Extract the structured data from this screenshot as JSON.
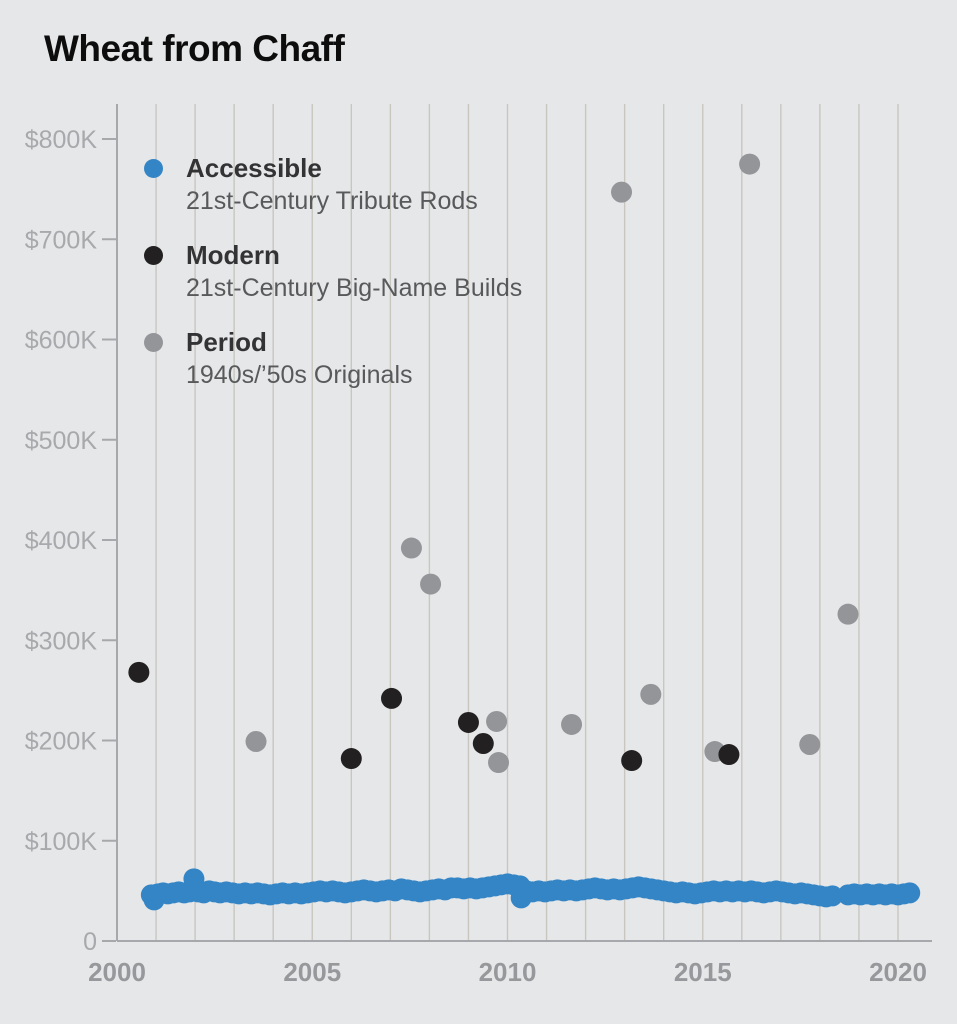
{
  "title": "Wheat from Chaff",
  "colors": {
    "background": "#e6e7e8",
    "accessible": "#3485c6",
    "modern": "#232021",
    "period": "#939598",
    "grid": "#c8c6bf",
    "axis": "#a6a8ab",
    "y_tick_label": "#a7a9ac",
    "x_tick_label": "#96989b",
    "title_text": "#0d0d0d",
    "legend_name_text": "#333335",
    "legend_desc_text": "#58595b"
  },
  "legend": [
    {
      "name": "Accessible",
      "description": "21st-Century Tribute Rods",
      "color_key": "accessible"
    },
    {
      "name": "Modern",
      "description": "21st-Century Big-Name Builds",
      "color_key": "modern"
    },
    {
      "name": "Period",
      "description": "1940s/’50s Originals",
      "color_key": "period"
    }
  ],
  "chart_data": {
    "type": "scatter",
    "title": "Wheat from Chaff",
    "y_unit": "USD (thousands)",
    "x_axis": {
      "range": [
        2000,
        2020.6
      ],
      "gridlines_every_year": true,
      "ticks": [
        {
          "value": 2000,
          "label": "2000"
        },
        {
          "value": 2005,
          "label": "2005"
        },
        {
          "value": 2010,
          "label": "2010"
        },
        {
          "value": 2015,
          "label": "2015"
        },
        {
          "value": 2020,
          "label": "2020"
        }
      ]
    },
    "y_axis": {
      "range": [
        0,
        835
      ],
      "ticks": [
        {
          "value": 0,
          "label": "0"
        },
        {
          "value": 100,
          "label": "$100K"
        },
        {
          "value": 200,
          "label": "$200K"
        },
        {
          "value": 300,
          "label": "$300K"
        },
        {
          "value": 400,
          "label": "$400K"
        },
        {
          "value": 500,
          "label": "$500K"
        },
        {
          "value": 600,
          "label": "$600K"
        },
        {
          "value": 700,
          "label": "$700K"
        },
        {
          "value": 800,
          "label": "$800K"
        }
      ]
    },
    "legend_position": "top-left-inside",
    "series": [
      {
        "name": "Accessible",
        "label": "21st-Century Tribute Rods",
        "color": "#3485c6",
        "points": [
          [
            2000.88,
            46
          ],
          [
            2000.95,
            41
          ],
          [
            2001.05,
            47
          ],
          [
            2001.18,
            48
          ],
          [
            2001.3,
            47
          ],
          [
            2001.44,
            48
          ],
          [
            2001.58,
            49
          ],
          [
            2001.72,
            48
          ],
          [
            2001.86,
            49
          ],
          [
            2001.97,
            62
          ],
          [
            2002.08,
            49
          ],
          [
            2002.22,
            48
          ],
          [
            2002.36,
            50
          ],
          [
            2002.5,
            49
          ],
          [
            2002.64,
            48
          ],
          [
            2002.8,
            49
          ],
          [
            2002.96,
            48
          ],
          [
            2003.12,
            47
          ],
          [
            2003.28,
            48
          ],
          [
            2003.44,
            47
          ],
          [
            2003.6,
            48
          ],
          [
            2003.76,
            47
          ],
          [
            2003.92,
            46
          ],
          [
            2004.08,
            47
          ],
          [
            2004.24,
            48
          ],
          [
            2004.4,
            47
          ],
          [
            2004.56,
            48
          ],
          [
            2004.72,
            47
          ],
          [
            2004.88,
            48
          ],
          [
            2005.04,
            49
          ],
          [
            2005.2,
            50
          ],
          [
            2005.36,
            49
          ],
          [
            2005.52,
            50
          ],
          [
            2005.68,
            49
          ],
          [
            2005.84,
            48
          ],
          [
            2006.0,
            49
          ],
          [
            2006.16,
            50
          ],
          [
            2006.32,
            51
          ],
          [
            2006.48,
            50
          ],
          [
            2006.64,
            49
          ],
          [
            2006.8,
            50
          ],
          [
            2006.96,
            51
          ],
          [
            2007.12,
            50
          ],
          [
            2007.28,
            52
          ],
          [
            2007.44,
            51
          ],
          [
            2007.6,
            50
          ],
          [
            2007.76,
            49
          ],
          [
            2007.92,
            50
          ],
          [
            2008.08,
            51
          ],
          [
            2008.24,
            52
          ],
          [
            2008.4,
            51
          ],
          [
            2008.56,
            53
          ],
          [
            2008.72,
            53
          ],
          [
            2008.88,
            52
          ],
          [
            2009.04,
            53
          ],
          [
            2009.2,
            52
          ],
          [
            2009.36,
            53
          ],
          [
            2009.52,
            54
          ],
          [
            2009.68,
            55
          ],
          [
            2009.84,
            56
          ],
          [
            2010.0,
            57
          ],
          [
            2010.16,
            56
          ],
          [
            2010.32,
            55
          ],
          [
            2010.35,
            43
          ],
          [
            2010.48,
            50
          ],
          [
            2010.64,
            49
          ],
          [
            2010.8,
            50
          ],
          [
            2010.96,
            49
          ],
          [
            2011.12,
            50
          ],
          [
            2011.28,
            51
          ],
          [
            2011.44,
            50
          ],
          [
            2011.6,
            51
          ],
          [
            2011.76,
            50
          ],
          [
            2011.92,
            51
          ],
          [
            2012.08,
            52
          ],
          [
            2012.24,
            53
          ],
          [
            2012.4,
            52
          ],
          [
            2012.56,
            51
          ],
          [
            2012.72,
            52
          ],
          [
            2012.88,
            51
          ],
          [
            2013.04,
            52
          ],
          [
            2013.2,
            53
          ],
          [
            2013.36,
            54
          ],
          [
            2013.52,
            53
          ],
          [
            2013.68,
            52
          ],
          [
            2013.84,
            51
          ],
          [
            2014.0,
            50
          ],
          [
            2014.16,
            49
          ],
          [
            2014.32,
            48
          ],
          [
            2014.48,
            49
          ],
          [
            2014.64,
            48
          ],
          [
            2014.8,
            47
          ],
          [
            2014.96,
            48
          ],
          [
            2015.12,
            49
          ],
          [
            2015.28,
            50
          ],
          [
            2015.44,
            49
          ],
          [
            2015.6,
            50
          ],
          [
            2015.76,
            49
          ],
          [
            2015.92,
            50
          ],
          [
            2016.08,
            49
          ],
          [
            2016.24,
            50
          ],
          [
            2016.4,
            49
          ],
          [
            2016.56,
            48
          ],
          [
            2016.72,
            49
          ],
          [
            2016.88,
            50
          ],
          [
            2017.04,
            49
          ],
          [
            2017.2,
            48
          ],
          [
            2017.36,
            47
          ],
          [
            2017.52,
            48
          ],
          [
            2017.68,
            47
          ],
          [
            2017.84,
            46
          ],
          [
            2018.0,
            45
          ],
          [
            2018.16,
            44
          ],
          [
            2018.32,
            45
          ],
          [
            2018.72,
            46
          ],
          [
            2018.88,
            47
          ],
          [
            2019.04,
            46
          ],
          [
            2019.2,
            47
          ],
          [
            2019.36,
            46
          ],
          [
            2019.52,
            47
          ],
          [
            2019.68,
            46
          ],
          [
            2019.84,
            47
          ],
          [
            2020.0,
            46
          ],
          [
            2020.15,
            47
          ],
          [
            2020.3,
            48
          ]
        ]
      },
      {
        "name": "Modern",
        "label": "21st-Century Big-Name Builds",
        "color": "#232021",
        "points": [
          [
            2000.56,
            268
          ],
          [
            2006.0,
            182
          ],
          [
            2007.03,
            242
          ],
          [
            2009.0,
            218
          ],
          [
            2009.38,
            197
          ],
          [
            2013.18,
            180
          ],
          [
            2015.67,
            186
          ]
        ]
      },
      {
        "name": "Period",
        "label": "1940s/’50s Originals",
        "color": "#939598",
        "points": [
          [
            2003.56,
            199
          ],
          [
            2007.54,
            392
          ],
          [
            2008.03,
            356
          ],
          [
            2009.72,
            219
          ],
          [
            2009.77,
            178
          ],
          [
            2011.64,
            216
          ],
          [
            2012.92,
            747
          ],
          [
            2013.67,
            246
          ],
          [
            2015.31,
            189
          ],
          [
            2016.2,
            775
          ],
          [
            2017.74,
            196
          ],
          [
            2018.72,
            326
          ]
        ]
      }
    ]
  }
}
